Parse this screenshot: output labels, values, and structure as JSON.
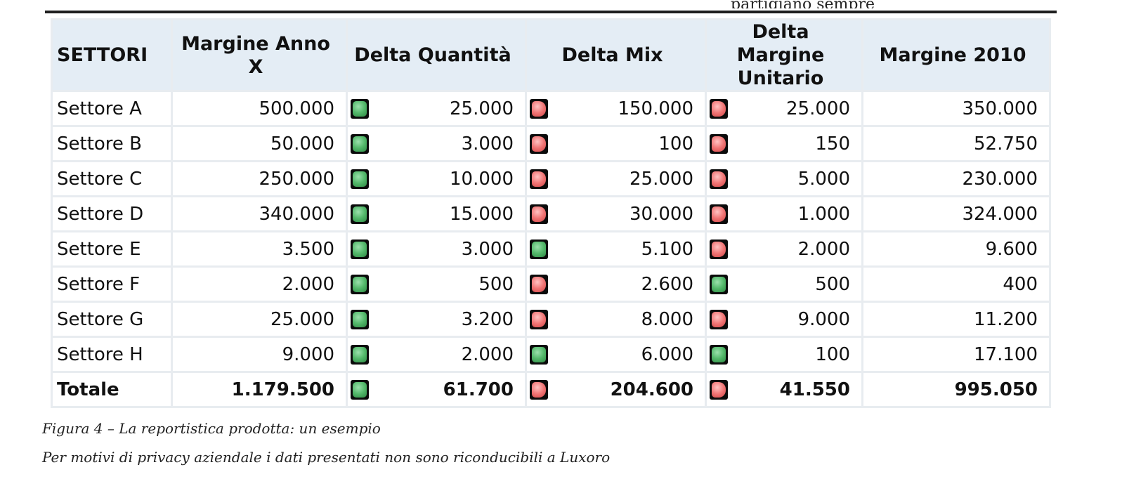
{
  "header": {
    "top_fragment": "partigiano sempre"
  },
  "table": {
    "columns": [
      "SETTORI",
      "Margine Anno X",
      "Delta Quantità",
      "Delta Mix",
      "Delta Margine Unitario",
      "Margine 2010"
    ],
    "rows": [
      {
        "sector": "Settore A",
        "margin_x": "500.000",
        "delta_qty": {
          "status": "green",
          "value": "25.000"
        },
        "delta_mix": {
          "status": "red",
          "value": "150.000"
        },
        "delta_unit": {
          "status": "red",
          "value": "25.000"
        },
        "margin_2010": "350.000"
      },
      {
        "sector": "Settore B",
        "margin_x": "50.000",
        "delta_qty": {
          "status": "green",
          "value": "3.000"
        },
        "delta_mix": {
          "status": "red",
          "value": "100"
        },
        "delta_unit": {
          "status": "red",
          "value": "150"
        },
        "margin_2010": "52.750"
      },
      {
        "sector": "Settore C",
        "margin_x": "250.000",
        "delta_qty": {
          "status": "green",
          "value": "10.000"
        },
        "delta_mix": {
          "status": "red",
          "value": "25.000"
        },
        "delta_unit": {
          "status": "red",
          "value": "5.000"
        },
        "margin_2010": "230.000"
      },
      {
        "sector": "Settore D",
        "margin_x": "340.000",
        "delta_qty": {
          "status": "green",
          "value": "15.000"
        },
        "delta_mix": {
          "status": "red",
          "value": "30.000"
        },
        "delta_unit": {
          "status": "red",
          "value": "1.000"
        },
        "margin_2010": "324.000"
      },
      {
        "sector": "Settore E",
        "margin_x": "3.500",
        "delta_qty": {
          "status": "green",
          "value": "3.000"
        },
        "delta_mix": {
          "status": "green",
          "value": "5.100"
        },
        "delta_unit": {
          "status": "red",
          "value": "2.000"
        },
        "margin_2010": "9.600"
      },
      {
        "sector": "Settore F",
        "margin_x": "2.000",
        "delta_qty": {
          "status": "green",
          "value": "500"
        },
        "delta_mix": {
          "status": "red",
          "value": "2.600"
        },
        "delta_unit": {
          "status": "green",
          "value": "500"
        },
        "margin_2010": "400"
      },
      {
        "sector": "Settore G",
        "margin_x": "25.000",
        "delta_qty": {
          "status": "green",
          "value": "3.200"
        },
        "delta_mix": {
          "status": "red",
          "value": "8.000"
        },
        "delta_unit": {
          "status": "red",
          "value": "9.000"
        },
        "margin_2010": "11.200"
      },
      {
        "sector": "Settore H",
        "margin_x": "9.000",
        "delta_qty": {
          "status": "green",
          "value": "2.000"
        },
        "delta_mix": {
          "status": "green",
          "value": "6.000"
        },
        "delta_unit": {
          "status": "green",
          "value": "100"
        },
        "margin_2010": "17.100"
      }
    ],
    "total": {
      "sector": "Totale",
      "margin_x": "1.179.500",
      "delta_qty": {
        "status": "green",
        "value": "61.700"
      },
      "delta_mix": {
        "status": "red",
        "value": "204.600"
      },
      "delta_unit": {
        "status": "red",
        "value": "41.550"
      },
      "margin_2010": "995.050"
    }
  },
  "colors": {
    "header_bg": "#e4edf5",
    "grid": "#e8ecf0",
    "status_green": "#53b86a",
    "status_red": "#f07575"
  },
  "captions": {
    "figure": "Figura 4 – La reportistica prodotta: un esempio",
    "privacy": "Per motivi di privacy aziendale i dati presentati non sono riconducibili a Luxoro"
  }
}
